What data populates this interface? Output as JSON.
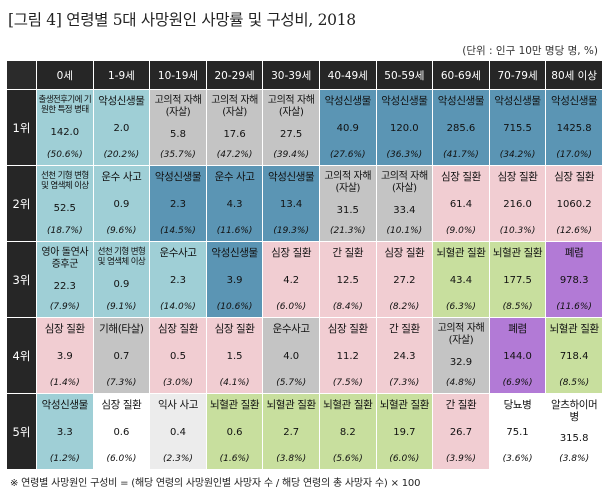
{
  "title": "[그림 4] 연령별 5대 사망원인 사망률 및 구성비, 2018",
  "unit_note": "(단위 : 인구 10만 명당 명, %)",
  "footnote": "※ 연령별 사망원인 구성비 = (해당 연령의 사망원인별 사망자 수 / 해당 연령의 총 사망자 수) × 100",
  "colors": {
    "header_bg": "#262626",
    "cancer": "#5b95b4",
    "external": "#9fcfd6",
    "injury": "#c4c4c4",
    "circulatory": "#f1cdd2",
    "cerebro": "#c8df9e",
    "pneumonia": "#b27ad6",
    "suicide_accident": "#ffffff",
    "misc": "#ececec"
  },
  "age_groups": [
    "0세",
    "1-9세",
    "10-19세",
    "20-29세",
    "30-39세",
    "40-49세",
    "50-59세",
    "60-69세",
    "70-79세",
    "80세 이상"
  ],
  "rows": [
    {
      "rank": "1위",
      "cells": [
        {
          "cause": "출생전후기에 기원한 특정 병태",
          "value": "142.0",
          "pct": "(50.6%)",
          "color": "#9fcfd6",
          "size": "small"
        },
        {
          "cause": "악성신생물",
          "value": "2.0",
          "pct": "(20.2%)",
          "color": "#9fcfd6"
        },
        {
          "cause": "고의적 자해(자살)",
          "value": "5.8",
          "pct": "(35.7%)",
          "color": "#c4c4c4",
          "size": "multi"
        },
        {
          "cause": "고의적 자해(자살)",
          "value": "17.6",
          "pct": "(47.2%)",
          "color": "#c4c4c4",
          "size": "multi"
        },
        {
          "cause": "고의적 자해(자살)",
          "value": "27.5",
          "pct": "(39.4%)",
          "color": "#c4c4c4",
          "size": "multi"
        },
        {
          "cause": "악성신생물",
          "value": "40.9",
          "pct": "(27.6%)",
          "color": "#5b95b4"
        },
        {
          "cause": "악성신생물",
          "value": "120.0",
          "pct": "(36.3%)",
          "color": "#5b95b4"
        },
        {
          "cause": "악성신생물",
          "value": "285.6",
          "pct": "(41.7%)",
          "color": "#5b95b4"
        },
        {
          "cause": "악성신생물",
          "value": "715.5",
          "pct": "(34.2%)",
          "color": "#5b95b4"
        },
        {
          "cause": "악성신생물",
          "value": "1425.8",
          "pct": "(17.0%)",
          "color": "#5b95b4"
        }
      ]
    },
    {
      "rank": "2위",
      "cells": [
        {
          "cause": "선천 기형 변형 및 염색체 이상",
          "value": "52.5",
          "pct": "(18.7%)",
          "color": "#9fcfd6",
          "size": "small"
        },
        {
          "cause": "운수 사고",
          "value": "0.9",
          "pct": "(9.6%)",
          "color": "#9fcfd6"
        },
        {
          "cause": "악성신생물",
          "value": "2.3",
          "pct": "(14.5%)",
          "color": "#5b95b4"
        },
        {
          "cause": "운수 사고",
          "value": "4.3",
          "pct": "(11.6%)",
          "color": "#5b95b4"
        },
        {
          "cause": "악성신생물",
          "value": "13.4",
          "pct": "(19.3%)",
          "color": "#5b95b4"
        },
        {
          "cause": "고의적 자해(자살)",
          "value": "31.5",
          "pct": "(21.3%)",
          "color": "#c4c4c4",
          "size": "multi"
        },
        {
          "cause": "고의적 자해(자살)",
          "value": "33.4",
          "pct": "(10.1%)",
          "color": "#c4c4c4",
          "size": "multi"
        },
        {
          "cause": "심장 질환",
          "value": "61.4",
          "pct": "(9.0%)",
          "color": "#f1cdd2"
        },
        {
          "cause": "심장 질환",
          "value": "216.0",
          "pct": "(10.3%)",
          "color": "#f1cdd2"
        },
        {
          "cause": "심장 질환",
          "value": "1060.2",
          "pct": "(12.6%)",
          "color": "#f1cdd2"
        }
      ]
    },
    {
      "rank": "3위",
      "cells": [
        {
          "cause": "영아 돌연사 증후군",
          "value": "22.3",
          "pct": "(7.9%)",
          "color": "#9fcfd6",
          "size": "multi"
        },
        {
          "cause": "선천 기형 변형 및 염색체 이상",
          "value": "0.9",
          "pct": "(9.1%)",
          "color": "#9fcfd6",
          "size": "small"
        },
        {
          "cause": "운수사고",
          "value": "2.3",
          "pct": "(14.0%)",
          "color": "#9fcfd6"
        },
        {
          "cause": "악성신생물",
          "value": "3.9",
          "pct": "(10.6%)",
          "color": "#5b95b4"
        },
        {
          "cause": "심장 질환",
          "value": "4.2",
          "pct": "(6.0%)",
          "color": "#f1cdd2"
        },
        {
          "cause": "간 질환",
          "value": "12.5",
          "pct": "(8.4%)",
          "color": "#f1cdd2"
        },
        {
          "cause": "심장 질환",
          "value": "27.2",
          "pct": "(8.2%)",
          "color": "#f1cdd2"
        },
        {
          "cause": "뇌혈관 질환",
          "value": "43.4",
          "pct": "(6.3%)",
          "color": "#c8df9e"
        },
        {
          "cause": "뇌혈관 질환",
          "value": "177.5",
          "pct": "(8.5%)",
          "color": "#c8df9e"
        },
        {
          "cause": "폐렴",
          "value": "978.3",
          "pct": "(11.6%)",
          "color": "#b27ad6"
        }
      ]
    },
    {
      "rank": "4위",
      "cells": [
        {
          "cause": "심장 질환",
          "value": "3.9",
          "pct": "(1.4%)",
          "color": "#f1cdd2"
        },
        {
          "cause": "기해(타살)",
          "value": "0.7",
          "pct": "(7.3%)",
          "color": "#c4c4c4"
        },
        {
          "cause": "심장 질환",
          "value": "0.5",
          "pct": "(3.0%)",
          "color": "#f1cdd2"
        },
        {
          "cause": "심장 질환",
          "value": "1.5",
          "pct": "(4.1%)",
          "color": "#f1cdd2"
        },
        {
          "cause": "운수사고",
          "value": "4.0",
          "pct": "(5.7%)",
          "color": "#c4c4c4"
        },
        {
          "cause": "심장 질환",
          "value": "11.2",
          "pct": "(7.5%)",
          "color": "#f1cdd2"
        },
        {
          "cause": "간 질환",
          "value": "24.3",
          "pct": "(7.3%)",
          "color": "#f1cdd2"
        },
        {
          "cause": "고의적 자해(자살)",
          "value": "32.9",
          "pct": "(4.8%)",
          "color": "#c4c4c4",
          "size": "multi"
        },
        {
          "cause": "폐렴",
          "value": "144.0",
          "pct": "(6.9%)",
          "color": "#b27ad6"
        },
        {
          "cause": "뇌혈관 질환",
          "value": "718.4",
          "pct": "(8.5%)",
          "color": "#c8df9e"
        }
      ]
    },
    {
      "rank": "5위",
      "cells": [
        {
          "cause": "악성신생물",
          "value": "3.3",
          "pct": "(1.2%)",
          "color": "#9fcfd6"
        },
        {
          "cause": "심장 질환",
          "value": "0.6",
          "pct": "(6.0%)",
          "color": "#ffffff"
        },
        {
          "cause": "익사 사고",
          "value": "0.4",
          "pct": "(2.3%)",
          "color": "#ececec"
        },
        {
          "cause": "뇌혈관 질환",
          "value": "0.6",
          "pct": "(1.6%)",
          "color": "#c8df9e"
        },
        {
          "cause": "뇌혈관 질환",
          "value": "2.7",
          "pct": "(3.8%)",
          "color": "#c8df9e"
        },
        {
          "cause": "뇌혈관 질환",
          "value": "8.2",
          "pct": "(5.6%)",
          "color": "#c8df9e"
        },
        {
          "cause": "뇌혈관 질환",
          "value": "19.7",
          "pct": "(6.0%)",
          "color": "#c8df9e"
        },
        {
          "cause": "간 질환",
          "value": "26.7",
          "pct": "(3.9%)",
          "color": "#f1cdd2"
        },
        {
          "cause": "당뇨병",
          "value": "75.1",
          "pct": "(3.6%)",
          "color": "#ffffff"
        },
        {
          "cause": "알츠하이머병",
          "value": "315.8",
          "pct": "(3.8%)",
          "color": "#ffffff"
        }
      ]
    }
  ]
}
